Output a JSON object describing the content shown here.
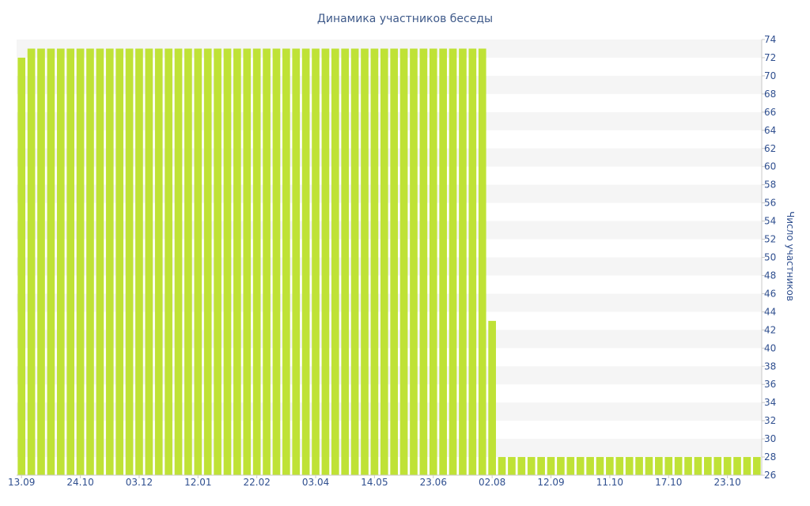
{
  "chart_data": {
    "type": "bar",
    "title": "Динамика участников беседы",
    "xlabel": "",
    "ylabel": "Число участников",
    "ylim": [
      26,
      74
    ],
    "y_axis_position": "right",
    "yticks": [
      26,
      28,
      30,
      32,
      34,
      36,
      38,
      40,
      42,
      44,
      46,
      48,
      50,
      52,
      54,
      56,
      58,
      60,
      62,
      64,
      66,
      68,
      70,
      72,
      74
    ],
    "grid": "horizontal bands",
    "bar_color": "#bfe236",
    "xtick_labels": [
      {
        "label": "13.09",
        "index": 0
      },
      {
        "label": "24.10",
        "index": 6
      },
      {
        "label": "03.12",
        "index": 12
      },
      {
        "label": "12.01",
        "index": 18
      },
      {
        "label": "22.02",
        "index": 24
      },
      {
        "label": "03.04",
        "index": 30
      },
      {
        "label": "14.05",
        "index": 36
      },
      {
        "label": "23.06",
        "index": 42
      },
      {
        "label": "02.08",
        "index": 48
      },
      {
        "label": "12.09",
        "index": 54
      },
      {
        "label": "11.10",
        "index": 60
      },
      {
        "label": "17.10",
        "index": 66
      },
      {
        "label": "23.10",
        "index": 72
      }
    ],
    "values": [
      72,
      73,
      73,
      73,
      73,
      73,
      73,
      73,
      73,
      73,
      73,
      73,
      73,
      73,
      73,
      73,
      73,
      73,
      73,
      73,
      73,
      73,
      73,
      73,
      73,
      73,
      73,
      73,
      73,
      73,
      73,
      73,
      73,
      73,
      73,
      73,
      73,
      73,
      73,
      73,
      73,
      73,
      73,
      73,
      73,
      73,
      73,
      73,
      43,
      28,
      28,
      28,
      28,
      28,
      28,
      28,
      28,
      28,
      28,
      28,
      28,
      28,
      28,
      28,
      28,
      28,
      28,
      28,
      28,
      28,
      28,
      28,
      28,
      28,
      28,
      28
    ]
  }
}
